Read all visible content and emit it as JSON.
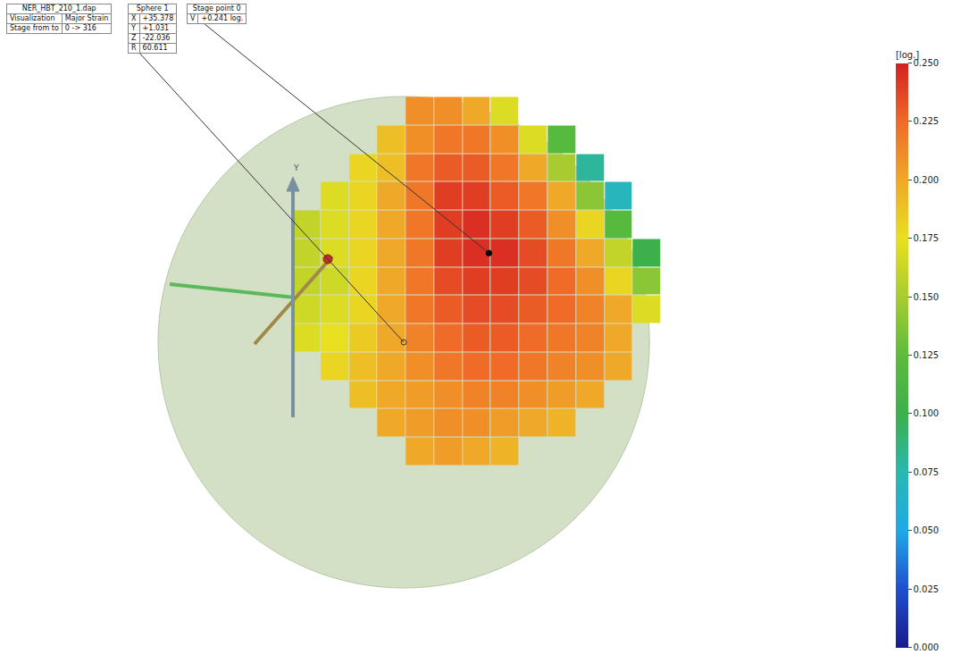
{
  "chart_data": {
    "type": "heatmap",
    "annotations": [
      {
        "rows": [
          [
            "NER_HBT_210_1.dap"
          ],
          [
            "Visualization",
            "Major Strain"
          ],
          [
            "Stage from to",
            "0 -> 316"
          ]
        ]
      },
      {
        "rows": [
          [
            "Sphere 1"
          ],
          [
            "X",
            "+35.378"
          ],
          [
            "Y",
            "+1.031"
          ],
          [
            "Z",
            "-22.036"
          ],
          [
            "R",
            "60.611"
          ]
        ]
      },
      {
        "rows": [
          [
            "Stage point 0"
          ],
          [
            "V",
            "+0.241 log."
          ]
        ]
      }
    ],
    "axis_label": "Y",
    "x": [
      -24,
      -17,
      -10,
      -3,
      4,
      11,
      18,
      25,
      32,
      39,
      46,
      53,
      60
    ],
    "y": [
      57,
      50,
      43,
      36,
      29,
      22,
      15,
      8,
      1,
      -6,
      -13,
      -20,
      -27
    ],
    "cells": [
      [
        null,
        null,
        null,
        null,
        0.21,
        0.21,
        0.2,
        0.17,
        null,
        null,
        null,
        null,
        null
      ],
      [
        null,
        null,
        null,
        0.19,
        0.21,
        0.22,
        0.22,
        0.21,
        0.17,
        0.12,
        null,
        null,
        null
      ],
      [
        null,
        null,
        0.18,
        0.19,
        0.22,
        0.23,
        0.23,
        0.22,
        0.2,
        0.15,
        0.08,
        null,
        null
      ],
      [
        null,
        0.17,
        0.18,
        0.2,
        0.22,
        0.24,
        0.24,
        0.23,
        0.22,
        0.2,
        0.14,
        0.07,
        null
      ],
      [
        0.16,
        0.17,
        0.18,
        0.2,
        0.22,
        0.24,
        0.245,
        0.24,
        0.23,
        0.21,
        0.18,
        0.12,
        null
      ],
      [
        0.16,
        0.17,
        0.18,
        0.2,
        0.22,
        0.24,
        0.245,
        0.245,
        0.235,
        0.22,
        0.2,
        0.16,
        0.1
      ],
      [
        0.16,
        0.165,
        0.18,
        0.2,
        0.22,
        0.235,
        0.24,
        0.24,
        0.235,
        0.225,
        0.21,
        0.18,
        0.14
      ],
      [
        0.165,
        0.17,
        0.18,
        0.2,
        0.22,
        0.23,
        0.235,
        0.235,
        0.23,
        0.225,
        0.215,
        0.2,
        0.17
      ],
      [
        0.17,
        0.175,
        0.185,
        0.2,
        0.215,
        0.225,
        0.23,
        0.23,
        0.225,
        0.22,
        0.215,
        0.2,
        null
      ],
      [
        null,
        0.18,
        0.19,
        0.2,
        0.21,
        0.22,
        0.225,
        0.225,
        0.22,
        0.215,
        0.21,
        0.2,
        null
      ],
      [
        null,
        null,
        0.19,
        0.2,
        0.205,
        0.21,
        0.215,
        0.215,
        0.21,
        0.205,
        0.2,
        null,
        null
      ],
      [
        null,
        null,
        null,
        0.2,
        0.205,
        0.21,
        0.21,
        0.205,
        0.2,
        0.195,
        null,
        null,
        null
      ],
      [
        null,
        null,
        null,
        null,
        0.2,
        0.205,
        0.2,
        0.195,
        null,
        null,
        null,
        null,
        null
      ]
    ],
    "xlim": [
      -99.6,
      118.5
    ],
    "ylim": [
      -79.1,
      84.4
    ],
    "stage_point": {
      "x": 21,
      "y": 22
    },
    "colorbar": {
      "title": "[log.]",
      "range": [
        0,
        0.25
      ],
      "ticks": [
        {
          "value": 0,
          "label": "0.000"
        },
        {
          "value": 0.025,
          "label": "0.025"
        },
        {
          "value": 0.05,
          "label": "0.050"
        },
        {
          "value": 0.075,
          "label": "0.075"
        },
        {
          "value": 0.1,
          "label": "0.100"
        },
        {
          "value": 0.125,
          "label": "0.125"
        },
        {
          "value": 0.15,
          "label": "0.150"
        },
        {
          "value": 0.175,
          "label": "0.175"
        },
        {
          "value": 0.2,
          "label": "0.200"
        },
        {
          "value": 0.225,
          "label": "0.225"
        },
        {
          "value": 0.25,
          "label": "0.250"
        }
      ]
    },
    "tick_labels": false,
    "grid": false
  }
}
